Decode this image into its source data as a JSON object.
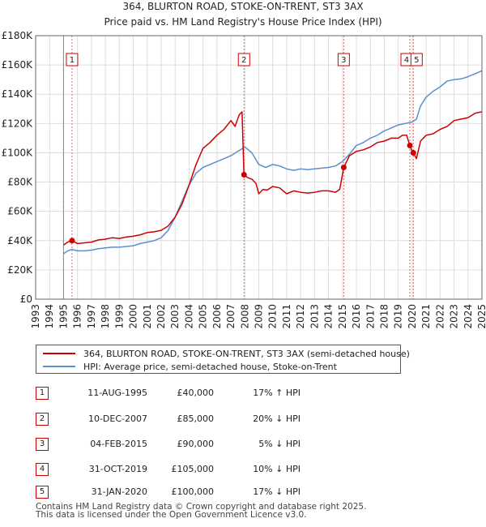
{
  "chart_data": {
    "type": "line",
    "title": "364, BLURTON ROAD, STOKE-ON-TRENT, ST3 3AX",
    "subtitle": "Price paid vs. HM Land Registry's House Price Index (HPI)",
    "xlabel": "",
    "ylabel": "",
    "xlim": [
      1993,
      2025
    ],
    "ylim": [
      0,
      180000
    ],
    "y_ticks": [
      {
        "value": 0,
        "label": "£0"
      },
      {
        "value": 20000,
        "label": "£20K"
      },
      {
        "value": 40000,
        "label": "£40K"
      },
      {
        "value": 60000,
        "label": "£60K"
      },
      {
        "value": 80000,
        "label": "£80K"
      },
      {
        "value": 100000,
        "label": "£100K"
      },
      {
        "value": 120000,
        "label": "£120K"
      },
      {
        "value": 140000,
        "label": "£140K"
      },
      {
        "value": 160000,
        "label": "£160K"
      },
      {
        "value": 180000,
        "label": "£180K"
      }
    ],
    "x_ticks": [
      "1993",
      "1994",
      "1995",
      "1996",
      "1997",
      "1998",
      "1999",
      "2000",
      "2001",
      "2002",
      "2003",
      "2004",
      "2005",
      "2006",
      "2007",
      "2008",
      "2009",
      "2010",
      "2011",
      "2012",
      "2013",
      "2014",
      "2015",
      "2016",
      "2017",
      "2018",
      "2019",
      "2020",
      "2021",
      "2022",
      "2023",
      "2024",
      "2025"
    ],
    "grid": true,
    "hatched_until": 1995.0,
    "series": [
      {
        "name": "364, BLURTON ROAD, STOKE-ON-TRENT, ST3 3AX (semi-detached house)",
        "color": "#cc0000",
        "x": [
          1995.0,
          1995.3,
          1995.61,
          1996.0,
          1996.5,
          1997.0,
          1997.5,
          1998.0,
          1998.5,
          1999.0,
          1999.5,
          2000.0,
          2000.5,
          2001.0,
          2001.5,
          2002.0,
          2002.5,
          2003.0,
          2003.5,
          2004.0,
          2004.5,
          2005.0,
          2005.5,
          2006.0,
          2006.5,
          2007.0,
          2007.3,
          2007.6,
          2007.8,
          2007.94,
          2008.2,
          2008.5,
          2008.8,
          2009.0,
          2009.3,
          2009.6,
          2010.0,
          2010.5,
          2011.0,
          2011.5,
          2012.0,
          2012.5,
          2013.0,
          2013.5,
          2014.0,
          2014.5,
          2014.8,
          2015.09,
          2015.5,
          2016.0,
          2016.5,
          2017.0,
          2017.5,
          2018.0,
          2018.5,
          2019.0,
          2019.3,
          2019.6,
          2019.83,
          2019.95,
          2020.08,
          2020.3,
          2020.6,
          2021.0,
          2021.5,
          2022.0,
          2022.5,
          2023.0,
          2023.5,
          2024.0,
          2024.5,
          2025.0
        ],
        "values": [
          37000,
          39000,
          40000,
          38000,
          38500,
          39000,
          40500,
          41000,
          42000,
          41500,
          42500,
          43000,
          44000,
          45500,
          46000,
          47000,
          50000,
          56000,
          65000,
          78000,
          92000,
          103000,
          107000,
          112000,
          116000,
          122000,
          118000,
          126000,
          128000,
          85000,
          83000,
          82000,
          79000,
          72000,
          75000,
          74500,
          77000,
          76000,
          72000,
          74000,
          73000,
          72500,
          73000,
          74000,
          74000,
          73000,
          75000,
          90000,
          98000,
          101000,
          102000,
          104000,
          107000,
          108000,
          110000,
          110000,
          112000,
          112000,
          105000,
          102000,
          100000,
          96000,
          108000,
          112000,
          113000,
          116000,
          118000,
          122000,
          123000,
          124000,
          127000,
          128000
        ]
      },
      {
        "name": "HPI: Average price, semi-detached house, Stoke-on-Trent",
        "color": "#5b8fd0",
        "x": [
          1995.0,
          1995.3,
          1995.6,
          1996.0,
          1996.5,
          1997.0,
          1997.5,
          1998.0,
          1998.5,
          1999.0,
          1999.5,
          2000.0,
          2000.5,
          2001.0,
          2001.5,
          2002.0,
          2002.5,
          2003.0,
          2003.5,
          2004.0,
          2004.5,
          2005.0,
          2005.5,
          2006.0,
          2006.5,
          2007.0,
          2007.5,
          2008.0,
          2008.5,
          2009.0,
          2009.5,
          2010.0,
          2010.5,
          2011.0,
          2011.5,
          2012.0,
          2012.5,
          2013.0,
          2013.5,
          2014.0,
          2014.5,
          2015.0,
          2015.5,
          2016.0,
          2016.5,
          2017.0,
          2017.5,
          2018.0,
          2018.5,
          2019.0,
          2019.5,
          2020.0,
          2020.3,
          2020.6,
          2021.0,
          2021.5,
          2022.0,
          2022.5,
          2023.0,
          2023.5,
          2024.0,
          2024.5,
          2025.0
        ],
        "values": [
          31000,
          33000,
          34000,
          33000,
          33000,
          33500,
          34500,
          35000,
          35500,
          35500,
          36000,
          36500,
          38000,
          39000,
          40000,
          42000,
          47000,
          56000,
          67000,
          78000,
          86000,
          90000,
          92000,
          94000,
          96000,
          98000,
          101000,
          104000,
          100000,
          92000,
          90000,
          92000,
          91000,
          89000,
          88000,
          89000,
          88500,
          89000,
          89500,
          90000,
          91000,
          94000,
          99000,
          105000,
          107000,
          110000,
          112000,
          115000,
          117000,
          119000,
          120000,
          121000,
          123000,
          132000,
          138000,
          142000,
          145000,
          149000,
          150000,
          150500,
          152000,
          154000,
          156000
        ]
      }
    ],
    "sales": [
      {
        "label": "1",
        "x": 1995.61,
        "value": 40000
      },
      {
        "label": "2",
        "x": 2007.94,
        "value": 85000
      },
      {
        "label": "3",
        "x": 2015.09,
        "value": 90000
      },
      {
        "label": "4",
        "x": 2019.83,
        "value": 105000
      },
      {
        "label": "5",
        "x": 2020.08,
        "value": 100000
      }
    ]
  },
  "legend": [
    {
      "label": "364, BLURTON ROAD, STOKE-ON-TRENT, ST3 3AX (semi-detached house)",
      "color": "#cc0000"
    },
    {
      "label": "HPI: Average price, semi-detached house, Stoke-on-Trent",
      "color": "#5b8fd0"
    }
  ],
  "transactions": [
    {
      "num": "1",
      "date": "11-AUG-1995",
      "price": "£40,000",
      "hpi": "17% ↑ HPI"
    },
    {
      "num": "2",
      "date": "10-DEC-2007",
      "price": "£85,000",
      "hpi": "20% ↓ HPI"
    },
    {
      "num": "3",
      "date": "04-FEB-2015",
      "price": "£90,000",
      "hpi": "5% ↓ HPI"
    },
    {
      "num": "4",
      "date": "31-OCT-2019",
      "price": "£105,000",
      "hpi": "10% ↓ HPI"
    },
    {
      "num": "5",
      "date": "31-JAN-2020",
      "price": "£100,000",
      "hpi": "17% ↓ HPI"
    }
  ],
  "footer": {
    "line1": "Contains HM Land Registry data © Crown copyright and database right 2025.",
    "line2": "This data is licensed under the Open Government Licence v3.0."
  }
}
